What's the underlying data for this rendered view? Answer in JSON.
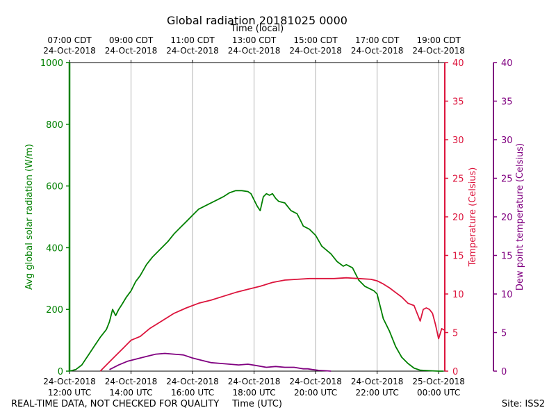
{
  "title": "Global radiation 20181025 0000",
  "top_axis_title": "Time (local)",
  "bottom_axis_title": "Time (UTC)",
  "footer_left": "REAL-TIME DATA, NOT CHECKED FOR QUALITY",
  "footer_right": "Site: ISS2",
  "colors": {
    "radiation": "#008000",
    "temperature": "#dc143c",
    "dewpoint": "#800080",
    "grid": "#b0b0b0",
    "axis": "#000000"
  },
  "chart_data": {
    "type": "line",
    "title": "Global radiation 20181025 0000",
    "xlabel": "Time (UTC)",
    "x_unit": "hours UTC since 24-Oct-2018 00:00",
    "xlim": [
      12,
      24.2
    ],
    "x_ticks_bottom": [
      {
        "x": 12,
        "line1": "24-Oct-2018",
        "line2": "12:00 UTC"
      },
      {
        "x": 14,
        "line1": "24-Oct-2018",
        "line2": "14:00 UTC"
      },
      {
        "x": 16,
        "line1": "24-Oct-2018",
        "line2": "16:00 UTC"
      },
      {
        "x": 18,
        "line1": "24-Oct-2018",
        "line2": "18:00 UTC"
      },
      {
        "x": 20,
        "line1": "24-Oct-2018",
        "line2": "20:00 UTC"
      },
      {
        "x": 22,
        "line1": "24-Oct-2018",
        "line2": "22:00 UTC"
      },
      {
        "x": 24,
        "line1": "25-Oct-2018",
        "line2": "00:00 UTC"
      }
    ],
    "x_ticks_top": [
      {
        "x": 12,
        "line1": "07:00 CDT",
        "line2": "24-Oct-2018"
      },
      {
        "x": 14,
        "line1": "09:00 CDT",
        "line2": "24-Oct-2018"
      },
      {
        "x": 16,
        "line1": "11:00 CDT",
        "line2": "24-Oct-2018"
      },
      {
        "x": 18,
        "line1": "13:00 CDT",
        "line2": "24-Oct-2018"
      },
      {
        "x": 20,
        "line1": "15:00 CDT",
        "line2": "24-Oct-2018"
      },
      {
        "x": 22,
        "line1": "17:00 CDT",
        "line2": "24-Oct-2018"
      },
      {
        "x": 24,
        "line1": "19:00 CDT",
        "line2": "24-Oct-2018"
      }
    ],
    "y_axes": {
      "radiation": {
        "label": "Avg global solar radiation (W/m)",
        "ylim": [
          0,
          1000
        ],
        "ticks": [
          0,
          200,
          400,
          600,
          800,
          1000
        ]
      },
      "temperature": {
        "label": "Temperature (Celsius)",
        "ylim": [
          0,
          40
        ],
        "ticks": [
          0,
          5,
          10,
          15,
          20,
          25,
          30,
          35,
          40
        ]
      },
      "dewpoint": {
        "label": "Dew point temperature (Celsius)",
        "ylim": [
          0,
          40
        ],
        "ticks": [
          0,
          5,
          10,
          15,
          20,
          25,
          30,
          35,
          40
        ]
      }
    },
    "series": [
      {
        "name": "Avg global solar radiation",
        "axis": "radiation",
        "x": [
          12.0,
          12.2,
          12.4,
          12.6,
          12.8,
          13.0,
          13.2,
          13.3,
          13.4,
          13.5,
          13.6,
          13.7,
          13.85,
          14.0,
          14.15,
          14.3,
          14.5,
          14.7,
          15.0,
          15.2,
          15.4,
          15.6,
          15.8,
          16.0,
          16.2,
          16.5,
          16.8,
          17.0,
          17.2,
          17.4,
          17.6,
          17.8,
          17.9,
          18.0,
          18.1,
          18.2,
          18.3,
          18.4,
          18.5,
          18.6,
          18.7,
          18.8,
          19.0,
          19.2,
          19.4,
          19.5,
          19.6,
          19.8,
          20.0,
          20.2,
          20.5,
          20.7,
          20.9,
          21.0,
          21.2,
          21.4,
          21.6,
          21.8,
          21.9,
          22.0,
          22.2,
          22.4,
          22.6,
          22.8,
          23.0,
          23.2,
          23.4,
          23.6,
          23.8,
          24.0,
          24.15
        ],
        "y": [
          0,
          5,
          20,
          50,
          80,
          110,
          135,
          160,
          200,
          180,
          200,
          215,
          240,
          260,
          290,
          310,
          345,
          370,
          400,
          420,
          445,
          465,
          485,
          505,
          525,
          540,
          555,
          565,
          578,
          585,
          585,
          582,
          575,
          555,
          535,
          520,
          565,
          575,
          570,
          575,
          560,
          550,
          545,
          520,
          510,
          490,
          470,
          460,
          440,
          405,
          380,
          355,
          340,
          345,
          335,
          295,
          275,
          265,
          260,
          250,
          170,
          130,
          80,
          45,
          25,
          10,
          3,
          2,
          1,
          0,
          0
        ]
      },
      {
        "name": "Temperature",
        "axis": "temperature",
        "x": [
          13.0,
          13.25,
          13.5,
          13.75,
          14.0,
          14.3,
          14.6,
          15.0,
          15.4,
          15.8,
          16.2,
          16.6,
          17.0,
          17.4,
          17.8,
          18.2,
          18.6,
          19.0,
          19.4,
          19.8,
          20.2,
          20.6,
          21.0,
          21.4,
          21.8,
          22.0,
          22.2,
          22.4,
          22.6,
          22.8,
          23.0,
          23.2,
          23.4,
          23.5,
          23.6,
          23.7,
          23.8,
          23.9,
          24.0,
          24.1,
          24.2
        ],
        "y": [
          0.0,
          1.0,
          2.0,
          3.0,
          4.0,
          4.5,
          5.5,
          6.5,
          7.5,
          8.2,
          8.8,
          9.2,
          9.7,
          10.2,
          10.6,
          11.0,
          11.5,
          11.8,
          11.9,
          12.0,
          12.0,
          12.0,
          12.1,
          12.0,
          11.9,
          11.7,
          11.3,
          10.8,
          10.2,
          9.6,
          8.8,
          8.5,
          6.5,
          8.0,
          8.2,
          8.0,
          7.5,
          6.0,
          4.2,
          5.5,
          5.3
        ]
      },
      {
        "name": "Dew point temperature",
        "axis": "dewpoint",
        "x": [
          13.3,
          13.6,
          13.9,
          14.2,
          14.5,
          14.8,
          15.1,
          15.4,
          15.7,
          16.0,
          16.3,
          16.6,
          16.9,
          17.2,
          17.5,
          17.8,
          18.1,
          18.4,
          18.7,
          19.0,
          19.3,
          19.6,
          19.75,
          19.9,
          20.1,
          20.3,
          20.5
        ],
        "y": [
          0.2,
          0.8,
          1.3,
          1.6,
          1.9,
          2.2,
          2.3,
          2.2,
          2.1,
          1.7,
          1.4,
          1.1,
          1.0,
          0.9,
          0.8,
          0.9,
          0.7,
          0.5,
          0.6,
          0.5,
          0.5,
          0.3,
          0.3,
          0.2,
          0.1,
          0.05,
          0.0
        ]
      }
    ]
  }
}
